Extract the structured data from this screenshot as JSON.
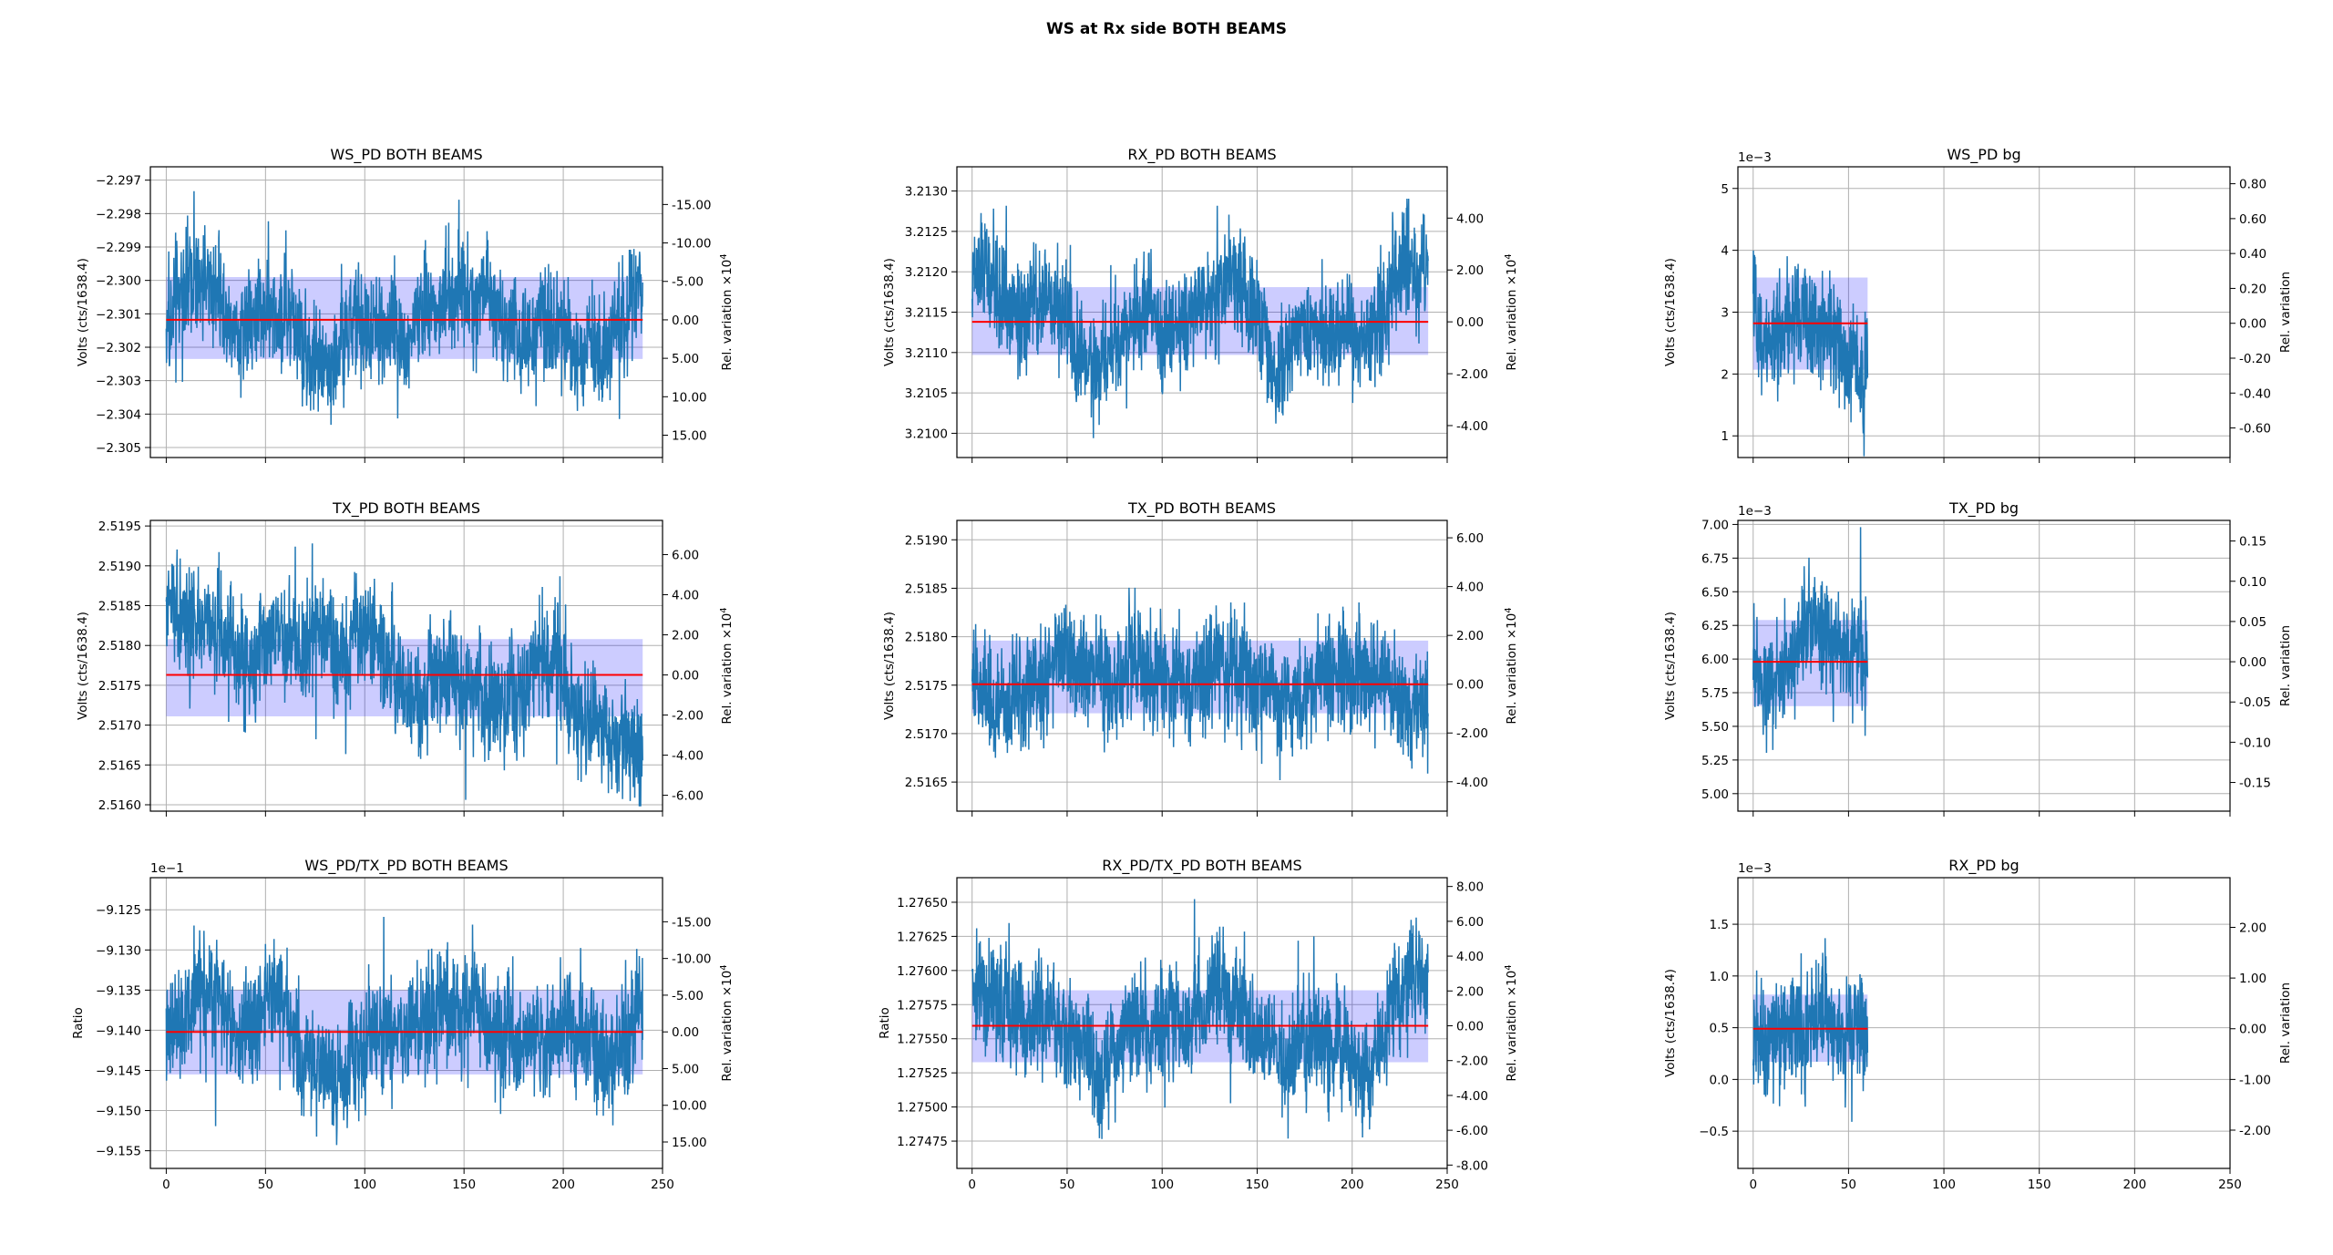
{
  "figure": {
    "title": "WS at Rx side BOTH BEAMS"
  },
  "colors": {
    "series": "#1f77b4",
    "mean_line": "#ff0000",
    "band": "#0000ff",
    "grid": "#b0b0b0"
  },
  "chart_data": [
    {
      "type": "line",
      "title": "WS_PD BOTH BEAMS",
      "xlabel": "",
      "ylabel": "Volts (cts/1638.4)",
      "y2label": "Rel. variation ×10^4",
      "xlim": [
        -8,
        250
      ],
      "xticks": [],
      "x_end": 240,
      "grid": true,
      "ylim": [
        -2.3053,
        -2.2966
      ],
      "yticks": [
        -2.305,
        -2.304,
        -2.303,
        -2.302,
        -2.301,
        -2.3,
        -2.299,
        -2.298,
        -2.297
      ],
      "ytick_labels": [
        "−2.305",
        "−2.304",
        "−2.303",
        "−2.302",
        "−2.301",
        "−2.300",
        "−2.299",
        "−2.298",
        "−2.297"
      ],
      "y_offset_label": "",
      "mean": -2.30118,
      "band": [
        -2.30235,
        -2.2999
      ],
      "noise_range": [
        -2.3048,
        -2.2971
      ],
      "y2_ticks": [
        "-15.00",
        "-10.00",
        "-5.00",
        "0.00",
        "5.00",
        "10.00",
        "15.00"
      ],
      "y2_values": [
        -15,
        -10,
        -5,
        0,
        5,
        10,
        15
      ],
      "drift": 0,
      "wander": 0.55
    },
    {
      "type": "line",
      "title": "RX_PD BOTH BEAMS",
      "xlabel": "",
      "ylabel": "Volts (cts/1638.4)",
      "y2label": "Rel. variation ×10^4",
      "xlim": [
        -8,
        250
      ],
      "xticks": [],
      "x_end": 240,
      "grid": true,
      "ylim": [
        3.2097,
        3.2133
      ],
      "yticks": [
        3.21,
        3.2105,
        3.211,
        3.2115,
        3.212,
        3.2125,
        3.213
      ],
      "ytick_labels": [
        "3.2100",
        "3.2105",
        "3.2110",
        "3.2115",
        "3.2120",
        "3.2125",
        "3.2130"
      ],
      "y_offset_label": "",
      "mean": 3.21138,
      "band": [
        3.21097,
        3.21181
      ],
      "noise_range": [
        3.21003,
        3.21308
      ],
      "y2_ticks": [
        "-4.00",
        "-2.00",
        "0.00",
        "2.00",
        "4.00"
      ],
      "y2_values": [
        -4,
        -2,
        0,
        2,
        4
      ],
      "drift": 0,
      "wander": 0.7
    },
    {
      "type": "line",
      "title": "WS_PD bg",
      "xlabel": "",
      "ylabel": "Volts (cts/1638.4)",
      "y2label": "Rel. variation",
      "xlim": [
        -8,
        250
      ],
      "xticks": [],
      "x_end": 60,
      "grid": true,
      "ylim": [
        0.65,
        5.35
      ],
      "yticks": [
        1,
        2,
        3,
        4,
        5
      ],
      "ytick_labels": [
        "1",
        "2",
        "3",
        "4",
        "5"
      ],
      "y_offset_label": "1e−3",
      "mean": 2.82,
      "band": [
        2.07,
        3.56
      ],
      "noise_range": [
        0.9,
        5.2
      ],
      "y2_ticks": [
        "-0.60",
        "-0.40",
        "-0.20",
        "0.00",
        "0.20",
        "0.40",
        "0.60",
        "0.80"
      ],
      "y2_values": [
        -0.6,
        -0.4,
        -0.2,
        0,
        0.2,
        0.4,
        0.6,
        0.8
      ],
      "drift": 0,
      "wander": 0.2
    },
    {
      "type": "line",
      "title": "TX_PD BOTH BEAMS",
      "xlabel": "",
      "ylabel": "Volts (cts/1638.4)",
      "y2label": "Rel. variation ×10^4",
      "xlim": [
        -8,
        250
      ],
      "xticks": [],
      "x_end": 240,
      "grid": true,
      "ylim": [
        2.51592,
        2.51957
      ],
      "yticks": [
        2.516,
        2.5165,
        2.517,
        2.5175,
        2.518,
        2.5185,
        2.519,
        2.5195
      ],
      "ytick_labels": [
        "2.5160",
        "2.5165",
        "2.5170",
        "2.5175",
        "2.5180",
        "2.5185",
        "2.5190",
        "2.5195"
      ],
      "y_offset_label": "",
      "mean": 2.51763,
      "band": [
        2.51711,
        2.51808
      ],
      "noise_range": [
        2.5161,
        2.5194
      ],
      "y2_ticks": [
        "-6.00",
        "-4.00",
        "-2.00",
        "0.00",
        "2.00",
        "4.00",
        "6.00"
      ],
      "y2_values": [
        -6,
        -4,
        -2,
        0,
        2,
        4,
        6
      ],
      "drift": -0.9,
      "wander": 0.3
    },
    {
      "type": "line",
      "title": "TX_PD BOTH BEAMS",
      "xlabel": "",
      "ylabel": "Volts (cts/1638.4)",
      "y2label": "Rel. variation ×10^4",
      "xlim": [
        -8,
        250
      ],
      "xticks": [],
      "x_end": 240,
      "grid": true,
      "ylim": [
        2.5162,
        2.5192
      ],
      "yticks": [
        2.5165,
        2.517,
        2.5175,
        2.518,
        2.5185,
        2.519
      ],
      "ytick_labels": [
        "2.5165",
        "2.5170",
        "2.5175",
        "2.5180",
        "2.5185",
        "2.5190"
      ],
      "y_offset_label": "",
      "mean": 2.51751,
      "band": [
        2.51721,
        2.51796
      ],
      "noise_range": [
        2.51633,
        2.519
      ],
      "y2_ticks": [
        "-4.00",
        "-2.00",
        "0.00",
        "2.00",
        "4.00",
        "6.00"
      ],
      "y2_values": [
        -4,
        -2,
        0,
        2,
        4,
        6
      ],
      "drift": 0,
      "wander": 0.15
    },
    {
      "type": "line",
      "title": "TX_PD bg",
      "xlabel": "",
      "ylabel": "Volts (cts/1638.4)",
      "y2label": "Rel. variation",
      "xlim": [
        -8,
        250
      ],
      "xticks": [],
      "x_end": 60,
      "grid": true,
      "ylim": [
        4.87,
        7.03
      ],
      "yticks": [
        5.0,
        5.25,
        5.5,
        5.75,
        6.0,
        6.25,
        6.5,
        6.75,
        7.0
      ],
      "ytick_labels": [
        "5.00",
        "5.25",
        "5.50",
        "5.75",
        "6.00",
        "6.25",
        "6.50",
        "6.75",
        "7.00"
      ],
      "y_offset_label": "1e−3",
      "mean": 5.98,
      "band": [
        5.65,
        6.29
      ],
      "noise_range": [
        4.93,
        6.93
      ],
      "y2_ticks": [
        "-0.15",
        "-0.10",
        "-0.05",
        "0.00",
        "0.05",
        "0.10",
        "0.15"
      ],
      "y2_values": [
        -0.15,
        -0.1,
        -0.05,
        0,
        0.05,
        0.1,
        0.15
      ],
      "drift": 0,
      "wander": 0.2
    },
    {
      "type": "line",
      "title": "WS_PD/TX_PD BOTH BEAMS",
      "xlabel": "",
      "ylabel": "Ratio",
      "y2label": "Rel. variation ×10^4",
      "xlim": [
        -8,
        250
      ],
      "xticks": [
        0,
        50,
        100,
        150,
        200,
        250
      ],
      "x_end": 240,
      "grid": true,
      "ylim": [
        -9.1572,
        -9.121
      ],
      "yticks": [
        -9.155,
        -9.15,
        -9.145,
        -9.14,
        -9.135,
        -9.13,
        -9.125
      ],
      "ytick_labels": [
        "−9.155",
        "−9.150",
        "−9.145",
        "−9.140",
        "−9.135",
        "−9.130",
        "−9.125"
      ],
      "y_offset_label": "1e−1",
      "mean": -9.1402,
      "band": [
        -9.1455,
        -9.135
      ],
      "noise_range": [
        -9.1565,
        -9.1235
      ],
      "y2_ticks": [
        "-15.00",
        "-10.00",
        "-5.00",
        "0.00",
        "5.00",
        "10.00",
        "15.00"
      ],
      "y2_values": [
        -15,
        -10,
        -5,
        0,
        5,
        10,
        15
      ],
      "drift": 0,
      "wander": 0.55
    },
    {
      "type": "line",
      "title": "RX_PD/TX_PD BOTH BEAMS",
      "xlabel": "",
      "ylabel": "Ratio",
      "y2label": "Rel. variation ×10^4",
      "xlim": [
        -8,
        250
      ],
      "xticks": [
        0,
        50,
        100,
        150,
        200,
        250
      ],
      "x_end": 240,
      "grid": true,
      "ylim": [
        1.27455,
        1.27668
      ],
      "yticks": [
        1.27475,
        1.275,
        1.27525,
        1.2755,
        1.27575,
        1.276,
        1.27625,
        1.2765
      ],
      "ytick_labels": [
        "1.27475",
        "1.27500",
        "1.27525",
        "1.27550",
        "1.27575",
        "1.27600",
        "1.27625",
        "1.27650"
      ],
      "y_offset_label": "",
      "mean": 1.275595,
      "band": [
        1.275328,
        1.275855
      ],
      "noise_range": [
        1.2747,
        1.27663
      ],
      "y2_ticks": [
        "-8.00",
        "-6.00",
        "-4.00",
        "-2.00",
        "0.00",
        "2.00",
        "4.00",
        "6.00",
        "8.00"
      ],
      "y2_values": [
        -8,
        -6,
        -4,
        -2,
        0,
        2,
        4,
        6,
        8
      ],
      "drift": 0,
      "wander": 0.5
    },
    {
      "type": "line",
      "title": "RX_PD bg",
      "xlabel": "",
      "ylabel": "Volts (cts/1638.4)",
      "y2label": "Rel. variation",
      "xlim": [
        -8,
        250
      ],
      "xticks": [
        0,
        50,
        100,
        150,
        200,
        250
      ],
      "x_end": 60,
      "grid": true,
      "ylim": [
        -0.86,
        1.95
      ],
      "yticks": [
        -0.5,
        0.0,
        0.5,
        1.0,
        1.5
      ],
      "ytick_labels": [
        "−0.5",
        "0.0",
        "0.5",
        "1.0",
        "1.5"
      ],
      "y_offset_label": "1e−3",
      "mean": 0.49,
      "band": [
        0.17,
        0.82
      ],
      "noise_range": [
        -0.72,
        1.8
      ],
      "y2_ticks": [
        "-2.00",
        "-1.00",
        "0.00",
        "1.00",
        "2.00"
      ],
      "y2_values": [
        -2,
        -1,
        0,
        1,
        2
      ],
      "drift": 0,
      "wander": 0.2
    }
  ]
}
